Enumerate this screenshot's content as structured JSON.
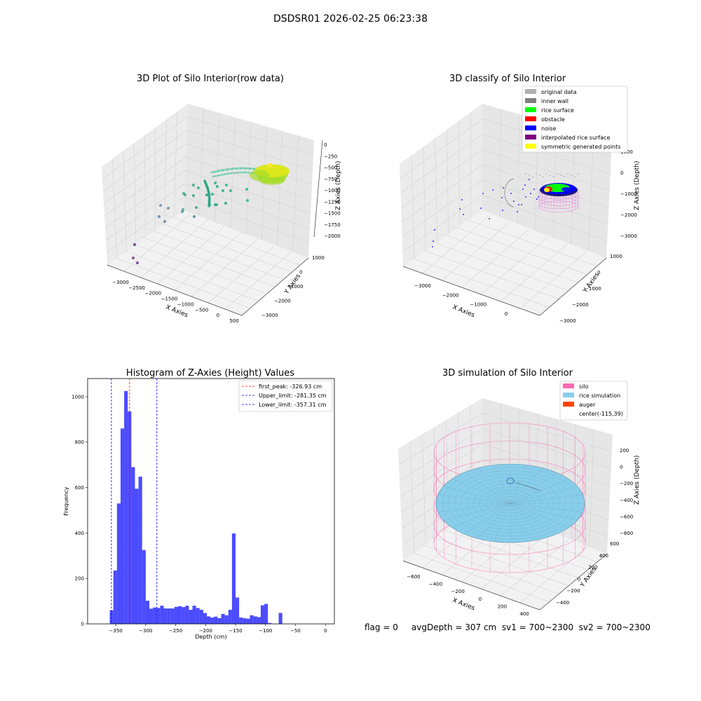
{
  "suptitle": "DSDSR01 2026-02-25 06:23:38",
  "footer": "flag = 0     avgDepth = 307 cm  sv1 = 700~2300  sv2 = 700~2300",
  "chart_data": [
    {
      "type": "scatter3d",
      "title": "3D Plot of Silo Interior(row data)",
      "xlabel": "X Axies",
      "ylabel": "Y Axies",
      "zlabel": "Z Axies (Depth)",
      "xticks": [
        "−3000",
        "−2500",
        "−2000",
        "−1500",
        "−1000",
        "−500",
        "0",
        "500"
      ],
      "yticks": [
        "−3000",
        "−2000",
        "−1000",
        "0",
        "1000"
      ],
      "zticks": [
        "0",
        "−250",
        "−500",
        "−750",
        "−1000",
        "−1250",
        "−1500",
        "−1750",
        "−2000"
      ],
      "xlim": [
        -3300,
        500
      ],
      "ylim": [
        -3200,
        1400
      ],
      "zlim": [
        -2100,
        100
      ],
      "colormap": "viridis by depth"
    },
    {
      "type": "scatter3d",
      "title": "3D classify of Silo Interior",
      "xlabel": "X Axies",
      "ylabel": "Y Axies",
      "zlabel": "Z Axies (Depth)",
      "xticks": [
        "−3000",
        "−2000",
        "−1000",
        "0"
      ],
      "yticks": [
        "−3000",
        "−2000",
        "−1000",
        "0",
        "1000"
      ],
      "zticks": [
        "1000",
        "0",
        "−1000",
        "−2000",
        "−3000"
      ],
      "legend_position": "top-right",
      "legend": [
        {
          "label": "original data",
          "color": "#b0b0b0"
        },
        {
          "label": "inner wall",
          "color": "#808080"
        },
        {
          "label": "rice surface",
          "color": "#00ff00"
        },
        {
          "label": "obstacle",
          "color": "#ff0000"
        },
        {
          "label": "noise",
          "color": "#0000ff"
        },
        {
          "label": "interpolated rice surface",
          "color": "#800080"
        },
        {
          "label": "symmetric generated points",
          "color": "#ffff00"
        }
      ]
    },
    {
      "type": "bar",
      "title": "Histogram of Z-Axies (Height) Values",
      "xlabel": "Depth (cm)",
      "ylabel": "Frequency",
      "xlim": [
        -397,
        15
      ],
      "ylim": [
        0,
        1080
      ],
      "xticks": [
        -350,
        -300,
        -250,
        -200,
        -150,
        -100,
        -50,
        0
      ],
      "yticks": [
        0,
        200,
        400,
        600,
        800,
        1000
      ],
      "bin_width": 6,
      "bin_start": -360,
      "bar_color": "#0000ff",
      "values": [
        60,
        235,
        530,
        860,
        1025,
        935,
        690,
        595,
        648,
        325,
        102,
        67,
        72,
        70,
        80,
        68,
        68,
        68,
        75,
        78,
        74,
        80,
        62,
        80,
        70,
        62,
        48,
        33,
        28,
        32,
        25,
        44,
        38,
        62,
        398,
        116,
        28,
        25,
        23,
        38,
        33,
        30,
        82,
        88,
        4,
        0,
        0,
        48
      ],
      "lines": [
        {
          "label": "first_peak: -326.93 cm",
          "x": -326.93,
          "color": "#ff0000"
        },
        {
          "label": "Upper_limit: -281.35 cm",
          "x": -281.35,
          "color": "#0000ff"
        },
        {
          "label": "Lower_limit: -357.31 cm",
          "x": -357.31,
          "color": "#0000ff"
        }
      ],
      "legend_position": "top-right"
    },
    {
      "type": "surface3d",
      "title": "3D simulation of Silo Interior",
      "xlabel": "X Axies",
      "ylabel": "Y Axies",
      "zlabel": "Z Axies (Depth)",
      "xticks": [
        "−600",
        "−400",
        "−200",
        "0",
        "200",
        "400"
      ],
      "yticks": [
        "−400",
        "−200",
        "0",
        "200",
        "400",
        "600"
      ],
      "zticks": [
        "200",
        "0",
        "−200",
        "−400",
        "−600",
        "−800"
      ],
      "legend_position": "top-right",
      "legend": [
        {
          "label": "silo",
          "color": "#ff69b4"
        },
        {
          "label": "rice simulation",
          "color": "#87ceeb"
        },
        {
          "label": "auger",
          "color": "#ff4500"
        },
        {
          "label": "center(-115,39)",
          "color": "none"
        }
      ]
    }
  ]
}
